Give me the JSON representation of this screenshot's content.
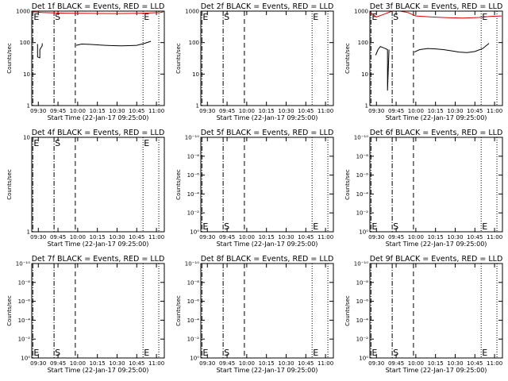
{
  "page": {
    "background": "#ffffff"
  },
  "panel_rows": [
    {
      "x_tick_labels": [
        "09:30",
        "09:45",
        "10:00",
        "10:15",
        "10:30",
        "10:45",
        "11:00"
      ]
    },
    {
      "x_tick_labels": [
        "09:30",
        "09:45",
        "10:00",
        "10:15",
        "10:30",
        "10:45",
        "11:00"
      ]
    },
    {
      "x_tick_labels": [
        "09:30",
        "09:45",
        "10:00",
        "10:15",
        "10:30",
        "10:45",
        "11:00"
      ]
    }
  ],
  "chart_data": [
    {
      "type": "line",
      "title": "Det 1f BLACK = Events, RED = LLD",
      "xlabel": "Start Time (22-Jan-17 09:25:00)",
      "ylabel": "Counts/sec",
      "x_range_min": [
        9.4167,
        11.1
      ],
      "y_scale": "log",
      "ylim": [
        1,
        1000
      ],
      "y_tick_values": [
        1,
        10,
        100,
        1000
      ],
      "y_tick_labels": [
        "1",
        "10",
        "100",
        "1000"
      ],
      "markers": [
        {
          "label": "E",
          "x_min": 9.43,
          "style": "dashdot"
        },
        {
          "label": "S",
          "x_min": 9.7,
          "style": "dashdot"
        },
        {
          "label": "",
          "x_min": 9.97,
          "style": "dashed"
        },
        {
          "label": "E",
          "x_min": 10.83,
          "style": "dotted"
        },
        {
          "label": "",
          "x_min": 11.03,
          "style": "dotted"
        }
      ],
      "series": [
        {
          "color": "#000000",
          "x_min": [
            9.49,
            9.49,
            9.52,
            9.52,
            9.55,
            9.55
          ],
          "y": [
            90,
            35,
            33,
            60,
            80,
            95
          ]
        },
        {
          "color": "#000000",
          "x_min": [
            9.98,
            10.05,
            10.15,
            10.25,
            10.35,
            10.45,
            10.55,
            10.65,
            10.75,
            10.85,
            10.93
          ],
          "y": [
            82,
            90,
            88,
            85,
            82,
            80,
            79,
            80,
            82,
            95,
            110
          ]
        },
        {
          "color": "#e00000",
          "x_min": [
            9.42,
            9.55,
            9.7,
            9.85,
            10.0,
            10.15,
            10.3,
            10.45,
            10.6,
            10.75,
            10.9,
            11.05,
            11.09
          ],
          "y": [
            950,
            900,
            880,
            860,
            850,
            845,
            840,
            835,
            840,
            850,
            870,
            900,
            950
          ]
        }
      ]
    },
    {
      "type": "line",
      "title": "Det 2f BLACK = Events, RED = LLD",
      "xlabel": "Start Time (22-Jan-17 09:25:00)",
      "ylabel": "Counts/sec",
      "x_range_min": [
        9.4167,
        11.1
      ],
      "y_scale": "log",
      "ylim": [
        1,
        1000
      ],
      "y_tick_values": [
        1,
        10,
        100,
        1000
      ],
      "y_tick_labels": [
        "1",
        "10",
        "100",
        "1000"
      ],
      "markers": [
        {
          "label": "E",
          "x_min": 9.43,
          "style": "dashdot"
        },
        {
          "label": "S",
          "x_min": 9.7,
          "style": "dashdot"
        },
        {
          "label": "",
          "x_min": 9.97,
          "style": "dashed"
        },
        {
          "label": "E",
          "x_min": 10.83,
          "style": "dotted"
        },
        {
          "label": "",
          "x_min": 11.03,
          "style": "dotted"
        }
      ],
      "series": []
    },
    {
      "type": "line",
      "title": "Det 3f BLACK = Events, RED = LLD",
      "xlabel": "Start Time (22-Jan-17 09:25:00)",
      "ylabel": "Counts/sec",
      "x_range_min": [
        9.4167,
        11.1
      ],
      "y_scale": "log",
      "ylim": [
        1,
        1000
      ],
      "y_tick_values": [
        1,
        10,
        100,
        1000
      ],
      "y_tick_labels": [
        "1",
        "10",
        "100",
        "1000"
      ],
      "markers": [
        {
          "label": "E",
          "x_min": 9.43,
          "style": "dashdot"
        },
        {
          "label": "S",
          "x_min": 9.7,
          "style": "dashdot"
        },
        {
          "label": "",
          "x_min": 9.97,
          "style": "dashed"
        },
        {
          "label": "E",
          "x_min": 10.83,
          "style": "dotted"
        },
        {
          "label": "",
          "x_min": 11.03,
          "style": "dotted"
        }
      ],
      "series": [
        {
          "color": "#000000",
          "x_min": [
            9.49,
            9.52,
            9.55,
            9.58,
            9.61,
            9.64,
            9.64,
            9.66
          ],
          "y": [
            40,
            60,
            75,
            70,
            65,
            60,
            3,
            60
          ]
        },
        {
          "color": "#000000",
          "x_min": [
            9.98,
            10.05,
            10.15,
            10.25,
            10.35,
            10.45,
            10.55,
            10.65,
            10.75,
            10.85,
            10.93
          ],
          "y": [
            50,
            60,
            65,
            63,
            60,
            55,
            50,
            48,
            52,
            65,
            95
          ]
        },
        {
          "color": "#e00000",
          "x_min": [
            9.42,
            9.5,
            9.6,
            9.7,
            9.8,
            9.9,
            10.0,
            10.2,
            10.4,
            10.6,
            10.8,
            10.95,
            11.09
          ],
          "y": [
            900,
            650,
            800,
            1000,
            1000,
            900,
            700,
            650,
            620,
            600,
            630,
            680,
            700
          ]
        }
      ]
    },
    {
      "type": "line",
      "title": "Det 4f BLACK = Events, RED = LLD",
      "xlabel": "Start Time (22-Jan-17 09:25:00)",
      "ylabel": "Counts/sec",
      "x_range_min": [
        9.4167,
        11.1
      ],
      "y_scale": "log",
      "ylim": [
        1,
        10
      ],
      "y_tick_values": [
        1,
        10
      ],
      "y_tick_labels": [
        "1",
        "10"
      ],
      "markers": [
        {
          "label": "E",
          "x_min": 9.43,
          "style": "dashdot"
        },
        {
          "label": "S",
          "x_min": 9.7,
          "style": "dashdot"
        },
        {
          "label": "",
          "x_min": 9.97,
          "style": "dashed"
        },
        {
          "label": "E",
          "x_min": 10.83,
          "style": "dotted"
        },
        {
          "label": "",
          "x_min": 11.03,
          "style": "dotted"
        }
      ],
      "series": []
    },
    {
      "type": "line",
      "title": "Det 5f BLACK = Events, RED = LLD",
      "xlabel": "Start Time (22-Jan-17 09:25:00)",
      "ylabel": "Counts/sec",
      "x_range_min": [
        9.4167,
        11.1
      ],
      "y_scale": "log",
      "ylim": [
        1,
        1e-10
      ],
      "y_tick_values": [
        1,
        0.01,
        0.0001,
        1e-06,
        1e-08,
        1e-10
      ],
      "y_tick_labels": [
        "10⁰",
        "10⁻²",
        "10⁻⁴",
        "10⁻⁶",
        "10⁻⁸",
        "10⁻¹⁰"
      ],
      "markers": [
        {
          "label": "E",
          "x_min": 9.43,
          "style": "dashdot"
        },
        {
          "label": "S",
          "x_min": 9.7,
          "style": "dashdot"
        },
        {
          "label": "",
          "x_min": 9.97,
          "style": "dashed"
        },
        {
          "label": "E",
          "x_min": 10.83,
          "style": "dotted"
        },
        {
          "label": "",
          "x_min": 11.03,
          "style": "dotted"
        }
      ],
      "series": []
    },
    {
      "type": "line",
      "title": "Det 6f BLACK = Events, RED = LLD",
      "xlabel": "Start Time (22-Jan-17 09:25:00)",
      "ylabel": "Counts/sec",
      "x_range_min": [
        9.4167,
        11.1
      ],
      "y_scale": "log",
      "ylim": [
        1,
        1e-10
      ],
      "y_tick_values": [
        1,
        0.01,
        0.0001,
        1e-06,
        1e-08,
        1e-10
      ],
      "y_tick_labels": [
        "10⁰",
        "10⁻²",
        "10⁻⁴",
        "10⁻⁶",
        "10⁻⁸",
        "10⁻¹⁰"
      ],
      "markers": [
        {
          "label": "E",
          "x_min": 9.43,
          "style": "dashdot"
        },
        {
          "label": "S",
          "x_min": 9.7,
          "style": "dashdot"
        },
        {
          "label": "",
          "x_min": 9.97,
          "style": "dashed"
        },
        {
          "label": "E",
          "x_min": 10.83,
          "style": "dotted"
        },
        {
          "label": "",
          "x_min": 11.03,
          "style": "dotted"
        }
      ],
      "series": []
    },
    {
      "type": "line",
      "title": "Det 7f BLACK = Events, RED = LLD",
      "xlabel": "Start Time (22-Jan-17 09:25:00)",
      "ylabel": "Counts/sec",
      "x_range_min": [
        9.4167,
        11.1
      ],
      "y_scale": "log",
      "ylim": [
        1,
        1e-10
      ],
      "y_tick_values": [
        1,
        0.01,
        0.0001,
        1e-06,
        1e-08,
        1e-10
      ],
      "y_tick_labels": [
        "10⁰",
        "10⁻²",
        "10⁻⁴",
        "10⁻⁶",
        "10⁻⁸",
        "10⁻¹⁰"
      ],
      "markers": [
        {
          "label": "E",
          "x_min": 9.43,
          "style": "dashdot"
        },
        {
          "label": "S",
          "x_min": 9.7,
          "style": "dashdot"
        },
        {
          "label": "",
          "x_min": 9.97,
          "style": "dashed"
        },
        {
          "label": "E",
          "x_min": 10.83,
          "style": "dotted"
        },
        {
          "label": "",
          "x_min": 11.03,
          "style": "dotted"
        }
      ],
      "series": []
    },
    {
      "type": "line",
      "title": "Det 8f BLACK = Events, RED = LLD",
      "xlabel": "Start Time (22-Jan-17 09:25:00)",
      "ylabel": "Counts/sec",
      "x_range_min": [
        9.4167,
        11.1
      ],
      "y_scale": "log",
      "ylim": [
        1,
        1e-10
      ],
      "y_tick_values": [
        1,
        0.01,
        0.0001,
        1e-06,
        1e-08,
        1e-10
      ],
      "y_tick_labels": [
        "10⁰",
        "10⁻²",
        "10⁻⁴",
        "10⁻⁶",
        "10⁻⁸",
        "10⁻¹⁰"
      ],
      "markers": [
        {
          "label": "E",
          "x_min": 9.43,
          "style": "dashdot"
        },
        {
          "label": "S",
          "x_min": 9.7,
          "style": "dashdot"
        },
        {
          "label": "",
          "x_min": 9.97,
          "style": "dashed"
        },
        {
          "label": "E",
          "x_min": 10.83,
          "style": "dotted"
        },
        {
          "label": "",
          "x_min": 11.03,
          "style": "dotted"
        }
      ],
      "series": []
    },
    {
      "type": "line",
      "title": "Det 9f BLACK = Events, RED = LLD",
      "xlabel": "Start Time (22-Jan-17 09:25:00)",
      "ylabel": "Counts/sec",
      "x_range_min": [
        9.4167,
        11.1
      ],
      "y_scale": "log",
      "ylim": [
        1,
        1e-10
      ],
      "y_tick_values": [
        1,
        0.01,
        0.0001,
        1e-06,
        1e-08,
        1e-10
      ],
      "y_tick_labels": [
        "10⁰",
        "10⁻²",
        "10⁻⁴",
        "10⁻⁶",
        "10⁻⁸",
        "10⁻¹⁰"
      ],
      "markers": [
        {
          "label": "E",
          "x_min": 9.43,
          "style": "dashdot"
        },
        {
          "label": "S",
          "x_min": 9.7,
          "style": "dashdot"
        },
        {
          "label": "",
          "x_min": 9.97,
          "style": "dashed"
        },
        {
          "label": "E",
          "x_min": 10.83,
          "style": "dotted"
        },
        {
          "label": "",
          "x_min": 11.03,
          "style": "dotted"
        }
      ],
      "series": []
    }
  ]
}
